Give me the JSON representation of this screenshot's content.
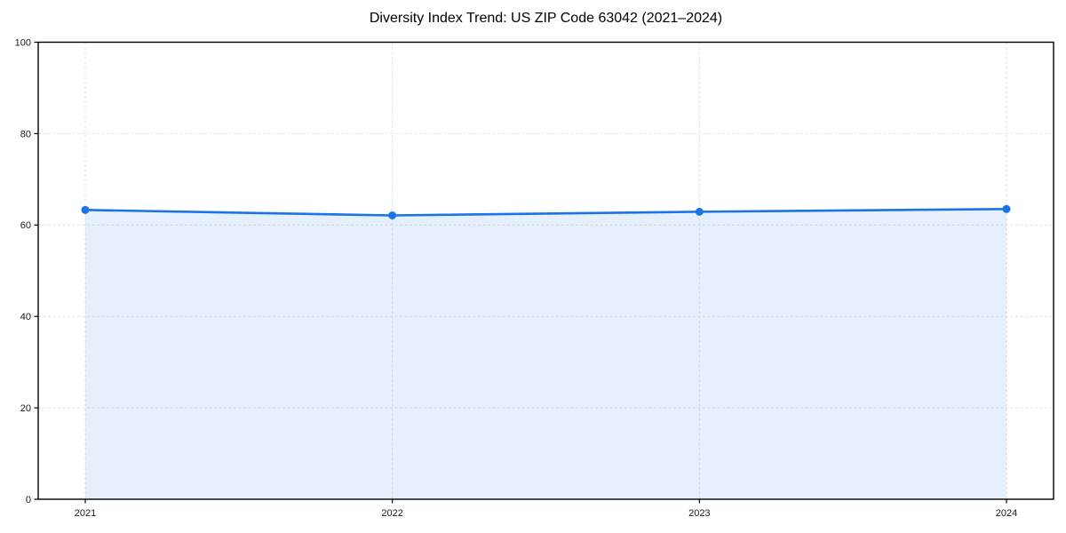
{
  "figure": {
    "background": "#ffffff"
  },
  "chart_data": {
    "type": "area",
    "title": "Diversity Index Trend: US ZIP Code 63042 (2021–2024)",
    "x": [
      2021,
      2022,
      2023,
      2024
    ],
    "series": [
      {
        "name": "Diversity Index",
        "values": [
          63.3,
          62.1,
          62.9,
          63.5
        ]
      }
    ],
    "xlabel": "",
    "ylabel": "",
    "ylim": [
      0,
      100
    ],
    "yticks": [
      0,
      20,
      40,
      60,
      80,
      100
    ],
    "xticks": [
      2021,
      2022,
      2023,
      2024
    ],
    "grid": true,
    "grid_style": "dashed",
    "legend_position": "none",
    "colors": {
      "line": "#1a73e8",
      "marker": "#1a73e8",
      "fill": "rgba(26,115,232,0.11)",
      "grid": "#e2e2e2",
      "axis": "#000000",
      "tick_label": "#1a1a1a",
      "title": "#000000"
    }
  }
}
